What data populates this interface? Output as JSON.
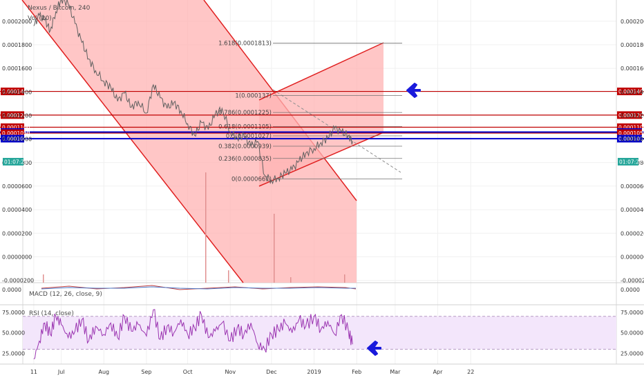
{
  "header": {
    "pair": "Nexus / Bitcoin, 240",
    "volume": "Vol (20)",
    "macd": "MACD (12, 26, close, 9)",
    "rsi": "RSI (14, close)"
  },
  "colors": {
    "channel_fill": "#ffb3b3",
    "channel_line": "#e02020",
    "hline_red": "#c00000",
    "hline_blue": "#0000cc",
    "price_line": "#606060",
    "rsi_line": "#9a33b0",
    "rsi_band": "#f3e6fb",
    "arrow": "#1a1adc",
    "timer": "#26a69a"
  },
  "chart_data": [
    {
      "type": "line",
      "panel": "price",
      "title": "Nexus / Bitcoin, 240",
      "y_tick_labels": [
        "0.0002000",
        "0.0001800",
        "0.0001600",
        "0.0001400",
        "0.0001200",
        "0.0001000",
        "0.0000800",
        "0.0000600",
        "0.0000400",
        "0.0000200",
        "0.0000000",
        "-0.0000200"
      ],
      "y_ticks": [
        0.0002,
        0.00018,
        0.00016,
        0.00014,
        0.00012,
        0.0001,
        8e-05,
        6e-05,
        4e-05,
        2e-05,
        0,
        -2e-05
      ],
      "ylim": [
        -2.2e-05,
        0.000218
      ],
      "x_tick_labels": [
        "11",
        "Jul",
        "Aug",
        "Sep",
        "Oct",
        "Nov",
        "Dec",
        "2019",
        "Feb",
        "Mar",
        "Apr",
        "22"
      ],
      "x_tick_values": [
        0,
        20,
        51,
        82,
        112,
        143,
        173,
        204,
        235,
        263,
        294,
        318
      ],
      "xlim": [
        -8,
        424
      ],
      "series": [
        {
          "x": [
            0,
            4,
            8,
            12,
            16,
            20,
            25,
            30,
            35,
            40,
            45,
            51,
            56,
            61,
            66,
            71,
            76,
            82,
            87,
            92,
            97,
            102,
            107,
            112,
            117,
            122,
            127,
            132,
            137,
            143,
            148,
            153,
            158,
            163,
            168,
            173,
            178,
            183,
            188,
            193,
            198,
            204,
            209,
            214,
            219,
            224,
            229,
            232
          ],
          "y": [
            0.000196,
            0.000205,
            0.000201,
            0.000192,
            0.000208,
            0.000219,
            0.000215,
            0.000198,
            0.000182,
            0.000168,
            0.000158,
            0.000149,
            0.000144,
            0.000132,
            0.000139,
            0.000127,
            0.000132,
            0.000122,
            0.000146,
            0.000135,
            0.000126,
            0.000131,
            0.000124,
            0.000113,
            0.000103,
            0.000114,
            0.000108,
            0.000121,
            0.000126,
            0.000106,
            0.000101,
            0.000103,
            9.4e-05,
            9.8e-05,
            6.9e-05,
            6.5e-05,
            6.7e-05,
            7.1e-05,
            7.4e-05,
            8.1e-05,
            8.8e-05,
            9.2e-05,
            9.7e-05,
            0.000101,
            0.000109,
            0.000106,
            0.000103,
            9.8e-05
          ]
        }
      ],
      "horizontal_levels": [
        {
          "value": 0.0001404,
          "label": "0.0001404",
          "color": "red"
        },
        {
          "value": 0.0001203,
          "label": "0.0001203",
          "color": "red"
        },
        {
          "value": 0.00011,
          "label": "0.0001100",
          "color": "red"
        },
        {
          "value": 0.0001059,
          "label": "0.0001059",
          "color": "blue"
        },
        {
          "value": 0.000105,
          "label": "0.0001050",
          "color": "red"
        },
        {
          "value": 0.0001003,
          "label": "0.0001003",
          "color": "blue"
        }
      ],
      "fibonacci": [
        {
          "level": "1.618",
          "value": 0.0001813
        },
        {
          "level": "1",
          "value": 0.000137
        },
        {
          "level": "0.786",
          "value": 0.0001225
        },
        {
          "level": "0.618",
          "value": 0.0001105
        },
        {
          "level": "0.5",
          "value": 0.0001027
        },
        {
          "level": "0.382",
          "value": 9.39e-05
        },
        {
          "level": "0.236",
          "value": 8.35e-05
        },
        {
          "level": "0",
          "value": 6.61e-05
        }
      ],
      "fibonacci_labels": [
        "1.618(0.0001813)",
        "1(0.000137)",
        "0.786(0.0001225)",
        "0.618(0.0001105)",
        "0.5(0.0001027)",
        "0.382(0.0000939)",
        "0.236(0.0000835)",
        "0(0.0000661)"
      ],
      "timer": "01:07:22"
    },
    {
      "type": "line",
      "panel": "macd",
      "title": "MACD (12, 26, close, 9)",
      "y_tick_labels": [
        "0.0000"
      ]
    },
    {
      "type": "line",
      "panel": "rsi",
      "title": "RSI (14, close)",
      "y_tick_labels": [
        "75.0000",
        "50.0000",
        "25.0000"
      ],
      "y_ticks": [
        75,
        50,
        25
      ],
      "ylim": [
        12,
        84
      ],
      "band": [
        30,
        70
      ],
      "series": [
        {
          "x": [
            0,
            4,
            8,
            12,
            16,
            20,
            25,
            30,
            35,
            40,
            45,
            51,
            56,
            61,
            66,
            71,
            76,
            82,
            87,
            92,
            97,
            102,
            107,
            112,
            117,
            122,
            127,
            132,
            137,
            143,
            148,
            153,
            158,
            163,
            168,
            173,
            178,
            183,
            188,
            193,
            198,
            204,
            209,
            214,
            219,
            224,
            229,
            232
          ],
          "y": [
            18,
            40,
            62,
            48,
            70,
            60,
            44,
            52,
            66,
            40,
            58,
            48,
            62,
            44,
            70,
            52,
            60,
            46,
            78,
            42,
            58,
            50,
            66,
            48,
            56,
            72,
            44,
            52,
            62,
            40,
            56,
            48,
            62,
            36,
            30,
            48,
            54,
            62,
            50,
            66,
            58,
            70,
            54,
            64,
            48,
            72,
            52,
            36
          ]
        }
      ]
    }
  ]
}
